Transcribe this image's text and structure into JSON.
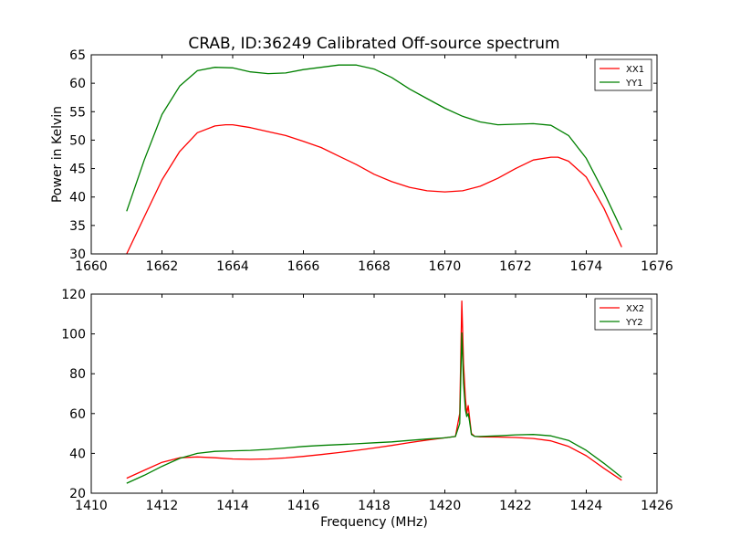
{
  "title": "CRAB, ID:36249 Calibrated Off-source spectrum",
  "chart_data": [
    {
      "type": "line",
      "ylabel": "Power in Kelvin",
      "xlabel": "",
      "xlim": [
        1660,
        1676
      ],
      "ylim": [
        30,
        65
      ],
      "xticks": [
        "1660",
        "1662",
        "1664",
        "1666",
        "1668",
        "1670",
        "1672",
        "1674",
        "1676"
      ],
      "yticks": [
        "30",
        "35",
        "40",
        "45",
        "50",
        "55",
        "60",
        "65"
      ],
      "legend_position": "top-right",
      "series": [
        {
          "name": "XX1",
          "color": "#ff0000",
          "x": [
            1661.0,
            1661.5,
            1662.0,
            1662.5,
            1663.0,
            1663.5,
            1663.8,
            1664.0,
            1664.5,
            1665.0,
            1665.5,
            1666.0,
            1666.5,
            1667.0,
            1667.5,
            1668.0,
            1668.5,
            1669.0,
            1669.5,
            1670.0,
            1670.5,
            1671.0,
            1671.5,
            1672.0,
            1672.5,
            1673.0,
            1673.2,
            1673.5,
            1674.0,
            1674.5,
            1675.0
          ],
          "y": [
            30.0,
            36.5,
            43.0,
            48.0,
            51.3,
            52.5,
            52.7,
            52.7,
            52.2,
            51.5,
            50.8,
            49.8,
            48.7,
            47.2,
            45.7,
            44.0,
            42.7,
            41.7,
            41.1,
            40.9,
            41.1,
            41.9,
            43.3,
            45.0,
            46.5,
            47.0,
            47.0,
            46.3,
            43.5,
            38.0,
            31.2
          ]
        },
        {
          "name": "YY1",
          "color": "#008000",
          "x": [
            1661.0,
            1661.5,
            1662.0,
            1662.5,
            1663.0,
            1663.5,
            1664.0,
            1664.5,
            1665.0,
            1665.5,
            1666.0,
            1666.5,
            1667.0,
            1667.5,
            1668.0,
            1668.5,
            1669.0,
            1669.5,
            1670.0,
            1670.5,
            1671.0,
            1671.5,
            1672.0,
            1672.5,
            1673.0,
            1673.5,
            1674.0,
            1674.5,
            1675.0
          ],
          "y": [
            37.5,
            46.5,
            54.5,
            59.5,
            62.2,
            62.8,
            62.7,
            62.0,
            61.7,
            61.8,
            62.4,
            62.8,
            63.2,
            63.2,
            62.5,
            61.0,
            59.0,
            57.3,
            55.6,
            54.2,
            53.2,
            52.7,
            52.8,
            52.9,
            52.6,
            50.8,
            46.8,
            40.8,
            34.2
          ]
        }
      ]
    },
    {
      "type": "line",
      "ylabel": "",
      "xlabel": "Frequency (MHz)",
      "xlim": [
        1410,
        1426
      ],
      "ylim": [
        20,
        120
      ],
      "xticks": [
        "1410",
        "1412",
        "1414",
        "1416",
        "1418",
        "1420",
        "1422",
        "1424",
        "1426"
      ],
      "yticks": [
        "20",
        "40",
        "60",
        "80",
        "100",
        "120"
      ],
      "legend_position": "top-right",
      "series": [
        {
          "name": "XX2",
          "color": "#ff0000",
          "x": [
            1411.0,
            1411.5,
            1412.0,
            1412.5,
            1413.0,
            1413.5,
            1414.0,
            1414.5,
            1415.0,
            1415.5,
            1416.0,
            1416.5,
            1417.0,
            1417.5,
            1418.0,
            1418.5,
            1419.0,
            1419.5,
            1420.0,
            1420.3,
            1420.42,
            1420.48,
            1420.53,
            1420.58,
            1420.62,
            1420.66,
            1420.7,
            1420.75,
            1420.85,
            1421.0,
            1421.5,
            1422.0,
            1422.5,
            1423.0,
            1423.5,
            1424.0,
            1424.5,
            1425.0
          ],
          "y": [
            27.5,
            31.5,
            35.5,
            37.8,
            38.2,
            37.8,
            37.2,
            37.0,
            37.2,
            37.7,
            38.5,
            39.4,
            40.4,
            41.5,
            42.7,
            44.0,
            45.4,
            46.7,
            47.8,
            48.5,
            60.0,
            116.5,
            85.0,
            68.0,
            60.0,
            64.0,
            58.0,
            50.0,
            48.5,
            48.3,
            48.2,
            48.0,
            47.5,
            46.3,
            43.5,
            38.8,
            32.5,
            26.5
          ]
        },
        {
          "name": "YY2",
          "color": "#008000",
          "x": [
            1411.0,
            1411.5,
            1412.0,
            1412.5,
            1413.0,
            1413.5,
            1414.0,
            1414.5,
            1415.0,
            1415.5,
            1416.0,
            1416.5,
            1417.0,
            1417.5,
            1418.0,
            1418.5,
            1419.0,
            1419.5,
            1420.0,
            1420.3,
            1420.42,
            1420.48,
            1420.53,
            1420.58,
            1420.62,
            1420.66,
            1420.7,
            1420.75,
            1420.85,
            1421.0,
            1421.5,
            1422.0,
            1422.5,
            1423.0,
            1423.5,
            1424.0,
            1424.5,
            1425.0
          ],
          "y": [
            25.0,
            29.0,
            33.5,
            37.5,
            40.0,
            41.0,
            41.3,
            41.5,
            42.0,
            42.7,
            43.5,
            44.0,
            44.4,
            44.8,
            45.3,
            45.8,
            46.5,
            47.2,
            47.8,
            48.5,
            55.0,
            100.5,
            75.0,
            62.0,
            58.5,
            60.0,
            56.0,
            49.5,
            48.5,
            48.5,
            48.8,
            49.3,
            49.5,
            48.8,
            46.5,
            41.5,
            35.0,
            28.0
          ]
        }
      ]
    }
  ]
}
